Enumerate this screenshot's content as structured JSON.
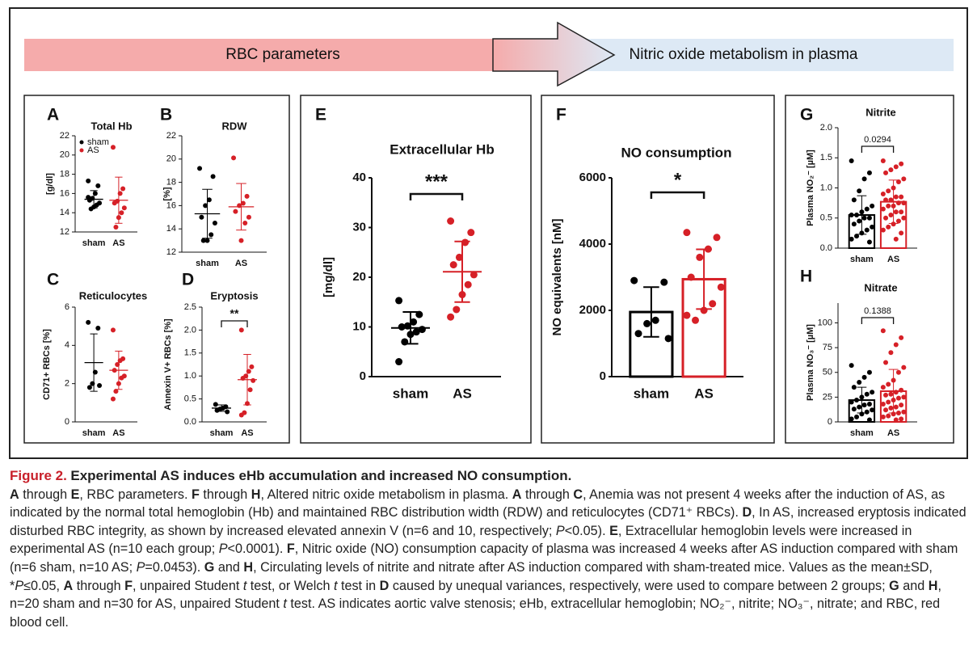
{
  "banner": {
    "left": "RBC parameters",
    "right": "Nitric oxide metabolism in plasma"
  },
  "chart_data": [
    {
      "type": "dot",
      "label": "A",
      "title": "Total Hb",
      "ylabel": "[g/dl]",
      "ylim": [
        12,
        22
      ],
      "yticks": [
        12,
        14,
        16,
        18,
        20,
        22
      ],
      "legend": "upper left",
      "series": [
        {
          "name": "sham",
          "color": "#000000",
          "values": [
            17.3,
            16.8,
            16.0,
            15.5,
            15.3,
            15.0,
            14.8,
            14.6,
            14.4,
            15.6
          ],
          "mean": 15.4,
          "sd": 0.9
        },
        {
          "name": "AS",
          "color": "#d62027",
          "values": [
            20.8,
            16.5,
            16.0,
            15.2,
            15.0,
            14.5,
            14.0,
            13.5,
            12.5
          ],
          "mean": 15.3,
          "sd": 2.4
        }
      ]
    },
    {
      "type": "dot",
      "label": "B",
      "title": "RDW",
      "ylabel": "[%]",
      "ylim": [
        12,
        22
      ],
      "yticks": [
        12,
        14,
        16,
        18,
        20,
        22
      ],
      "series": [
        {
          "name": "sham",
          "color": "#000000",
          "values": [
            19.2,
            18.5,
            16.5,
            16.0,
            15.0,
            14.5,
            13.5,
            13.0,
            13.0
          ],
          "mean": 15.3,
          "sd": 2.1
        },
        {
          "name": "AS",
          "color": "#d62027",
          "values": [
            20.1,
            16.8,
            16.2,
            16.0,
            15.5,
            15.0,
            14.5,
            13.0
          ],
          "mean": 15.9,
          "sd": 2.0
        }
      ]
    },
    {
      "type": "dot",
      "label": "C",
      "title": "Reticulocytes",
      "ylabel": "CD71+ RBCs [%]",
      "ylim": [
        0,
        6
      ],
      "yticks": [
        0,
        2,
        4,
        6
      ],
      "series": [
        {
          "name": "sham",
          "color": "#000000",
          "values": [
            5.2,
            4.9,
            2.6,
            2.0,
            1.8,
            1.9
          ],
          "mean": 3.1,
          "sd": 1.5
        },
        {
          "name": "AS",
          "color": "#d62027",
          "values": [
            4.8,
            3.3,
            3.2,
            3.0,
            2.7,
            2.4,
            2.3,
            2.0,
            1.6,
            1.2
          ],
          "mean": 2.7,
          "sd": 1.0
        }
      ]
    },
    {
      "type": "dot",
      "label": "D",
      "title": "Eryptosis",
      "ylabel": "Annexin V+ RBCs [%]",
      "ylim": [
        0,
        2.5
      ],
      "yticks": [
        {
          "value": 0,
          "label": "0.0"
        },
        0.5,
        {
          "value": 1,
          "label": "1.0"
        },
        1.5,
        {
          "value": 2,
          "label": "2.0"
        },
        2.5
      ],
      "annotation": "**",
      "series": [
        {
          "name": "sham",
          "color": "#000000",
          "values": [
            0.38,
            0.33,
            0.3,
            0.28,
            0.25,
            0.22
          ],
          "mean": 0.3,
          "sd": 0.07
        },
        {
          "name": "AS",
          "color": "#d62027",
          "values": [
            2.0,
            1.2,
            1.1,
            1.0,
            0.95,
            0.9,
            0.7,
            0.4,
            0.2,
            0.15
          ],
          "mean": 0.92,
          "sd": 0.55
        }
      ]
    },
    {
      "type": "dot",
      "label": "E",
      "title": "Extracellular Hb",
      "ylabel": "[mg/dl]",
      "ylim": [
        0,
        40
      ],
      "yticks": [
        0,
        10,
        20,
        30,
        40
      ],
      "annotation": "***",
      "series": [
        {
          "name": "sham",
          "color": "#000000",
          "values": [
            15.3,
            12.5,
            11,
            10.2,
            10,
            9.5,
            9,
            8.5,
            7,
            3
          ],
          "mean": 9.8,
          "sd": 3.2
        },
        {
          "name": "AS",
          "color": "#d62027",
          "values": [
            31.3,
            29,
            27,
            24,
            22.5,
            20.5,
            18.5,
            16.5,
            13.5,
            12
          ],
          "mean": 21.1,
          "sd": 6.1
        }
      ]
    },
    {
      "type": "bar",
      "label": "F",
      "title": "NO consumption",
      "ylabel": "NO equivalents [nM]",
      "ylim": [
        0,
        6000
      ],
      "yticks": [
        0,
        2000,
        4000,
        6000
      ],
      "annotation": "*",
      "series": [
        {
          "name": "sham",
          "color": "#000000",
          "values": [
            2900,
            2850,
            1700,
            1600,
            1300,
            1150
          ],
          "mean": 1950,
          "sd": 750
        },
        {
          "name": "AS",
          "color": "#d62027",
          "values": [
            4350,
            4200,
            3850,
            3600,
            3000,
            2700,
            2200,
            2000,
            1700,
            1850
          ],
          "mean": 2940,
          "sd": 900
        }
      ]
    },
    {
      "type": "bar",
      "label": "G",
      "title": "Nitrite",
      "ylabel": "Plasma NO₂⁻ [µM]",
      "ylim": [
        0,
        2
      ],
      "yticks": [
        {
          "value": 0,
          "label": "0.0"
        },
        0.5,
        {
          "value": 1,
          "label": "1.0"
        },
        1.5,
        {
          "value": 2,
          "label": "2.0"
        }
      ],
      "annotation": "0.0294",
      "series": [
        {
          "name": "sham",
          "color": "#000000",
          "values": [
            1.45,
            1.25,
            1.15,
            0.95,
            0.8,
            0.7,
            0.65,
            0.6,
            0.55,
            0.55,
            0.5,
            0.5,
            0.45,
            0.4,
            0.35,
            0.3,
            0.25,
            0.2,
            0.15,
            0.1
          ],
          "mean": 0.55,
          "sd": 0.32
        },
        {
          "name": "AS",
          "color": "#d62027",
          "values": [
            1.45,
            1.4,
            1.35,
            1.3,
            1.25,
            1.15,
            1.1,
            1.0,
            0.95,
            0.9,
            0.85,
            0.85,
            0.8,
            0.8,
            0.75,
            0.75,
            0.7,
            0.7,
            0.65,
            0.6,
            0.6,
            0.55,
            0.5,
            0.5,
            0.45,
            0.4,
            0.35,
            0.3,
            0.25,
            0.15
          ],
          "mean": 0.77,
          "sd": 0.36
        }
      ]
    },
    {
      "type": "bar",
      "label": "H",
      "title": "Nitrate",
      "ylabel": "Plasma NO₃⁻ [µM]",
      "ylim": [
        0,
        120
      ],
      "yticks": [
        0,
        25,
        50,
        75,
        100
      ],
      "annotation": "0.1388",
      "series": [
        {
          "name": "sham",
          "color": "#000000",
          "values": [
            57,
            50,
            45,
            40,
            35,
            30,
            28,
            25,
            22,
            20,
            18,
            17,
            15,
            13,
            12,
            10,
            8,
            5,
            3,
            2
          ],
          "mean": 22,
          "sd": 13
        },
        {
          "name": "AS",
          "color": "#d62027",
          "values": [
            92,
            85,
            78,
            70,
            60,
            55,
            50,
            42,
            38,
            35,
            32,
            30,
            28,
            27,
            25,
            24,
            22,
            20,
            18,
            17,
            15,
            14,
            12,
            10,
            9,
            8,
            6,
            5,
            3,
            2
          ],
          "mean": 31,
          "sd": 22
        }
      ]
    }
  ],
  "caption": {
    "label": "Figure 2.",
    "title": "Experimental AS induces eHb accumulation and increased NO consumption.",
    "body": [
      {
        "text": "A",
        "style": "bold"
      },
      " through ",
      {
        "text": "E",
        "style": "bold"
      },
      ", RBC parameters. ",
      {
        "text": "F",
        "style": "bold"
      },
      " through ",
      {
        "text": "H",
        "style": "bold"
      },
      ", Altered nitric oxide metabolism in plasma. ",
      {
        "text": "A",
        "style": "bold"
      },
      " through ",
      {
        "text": "C",
        "style": "bold"
      },
      ", Anemia was not present 4 weeks after the induction of AS, as indicated by the normal total hemoglobin (Hb) and maintained RBC distribution width (RDW) and reticulocytes (CD71⁺ RBCs). ",
      {
        "text": "D",
        "style": "bold"
      },
      ", In AS, increased eryptosis indicated disturbed RBC integrity, as shown by increased elevated annexin V (n=6 and 10, respectively; ",
      {
        "text": "P",
        "style": "italic"
      },
      "<0.05). ",
      {
        "text": "E",
        "style": "bold"
      },
      ", Extracellular hemoglobin levels were increased in experimental AS (n=10 each group; ",
      {
        "text": "P",
        "style": "italic"
      },
      "<0.0001). ",
      {
        "text": "F",
        "style": "bold"
      },
      ", Nitric oxide (NO) consumption capacity of plasma was increased 4 weeks after AS induction compared with sham (n=6 sham, n=10 AS; ",
      {
        "text": "P",
        "style": "italic"
      },
      "=0.0453). ",
      {
        "text": "G",
        "style": "bold"
      },
      " and ",
      {
        "text": "H",
        "style": "bold"
      },
      ", Circulating levels of nitrite and nitrate after AS induction compared with sham-treated mice. Values as the mean±SD, *",
      {
        "text": "P",
        "style": "italic"
      },
      "≤0.05, ",
      {
        "text": "A",
        "style": "bold"
      },
      " through ",
      {
        "text": "F",
        "style": "bold"
      },
      ", unpaired Student ",
      {
        "text": "t",
        "style": "italic"
      },
      " test, or Welch ",
      {
        "text": "t",
        "style": "italic"
      },
      " test in ",
      {
        "text": "D",
        "style": "bold"
      },
      " caused by unequal variances, respectively, were used to compare between 2 groups; ",
      {
        "text": "G",
        "style": "bold"
      },
      " and ",
      {
        "text": "H",
        "style": "bold"
      },
      ", n=20 sham and n=30 for AS, unpaired Student ",
      {
        "text": "t",
        "style": "italic"
      },
      " test. AS indicates aortic valve stenosis; eHb, extracellular hemoglobin; NO₂⁻, nitrite; NO₃⁻, nitrate; and RBC, red blood cell."
    ]
  }
}
